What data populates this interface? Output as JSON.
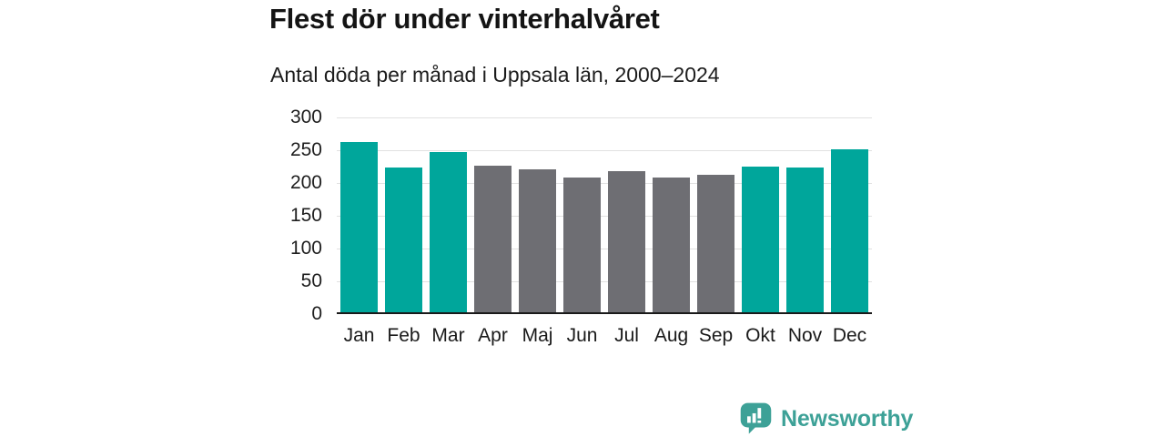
{
  "header": {
    "title": "Flest dör under vinterhalvåret",
    "subtitle": "Antal döda per månad i Uppsala län, 2000–2024"
  },
  "chart_data": {
    "type": "bar",
    "title": "Flest dör under vinterhalvåret",
    "subtitle": "Antal döda per månad i Uppsala län, 2000–2024",
    "categories": [
      "Jan",
      "Feb",
      "Mar",
      "Apr",
      "Maj",
      "Jun",
      "Jul",
      "Aug",
      "Sep",
      "Okt",
      "Nov",
      "Dec"
    ],
    "values": [
      262,
      224,
      247,
      226,
      221,
      209,
      218,
      209,
      212,
      225,
      223,
      252
    ],
    "bar_color_keys": [
      "winter",
      "winter",
      "winter",
      "summer",
      "summer",
      "summer",
      "summer",
      "summer",
      "summer",
      "winter",
      "winter",
      "winter"
    ],
    "bar_palette": {
      "winter": "#00a69b",
      "summer": "#6e6e73"
    },
    "xlabel": "",
    "ylabel": "",
    "ylim": [
      0,
      300
    ],
    "yticks": [
      0,
      50,
      100,
      150,
      200,
      250,
      300
    ],
    "grid": true,
    "legend_position": "none",
    "gridline_color": "#e1e1e1",
    "axis_line_color": "#1a1a1a"
  },
  "footer": {
    "brand_name": "Newsworthy",
    "brand_color": "#3da197",
    "logo_icon": "newsworthy-speech-bubble-bar-chart-icon",
    "logo_bar_color": "#ffffff"
  }
}
